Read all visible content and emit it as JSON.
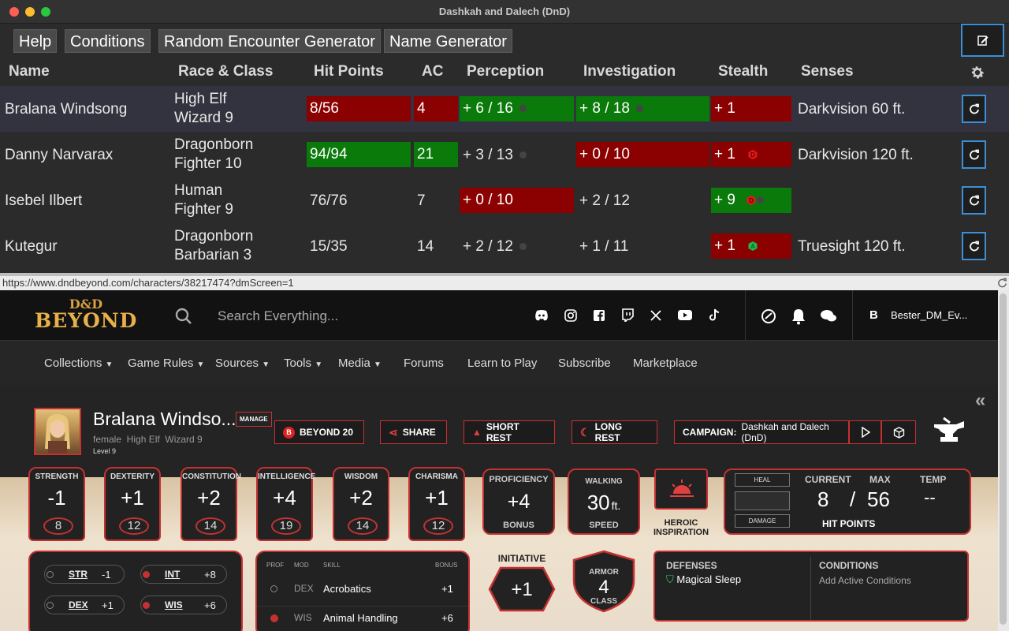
{
  "window": {
    "title": "Dashkah and Dalech (DnD)"
  },
  "toolbar": {
    "buttons": [
      "Help",
      "Conditions",
      "Random Encounter Generator",
      "Name Generator"
    ]
  },
  "table": {
    "headers": [
      "Name",
      "Race & Class",
      "Hit Points",
      "AC",
      "Perception",
      "Investigation",
      "Stealth",
      "Senses"
    ],
    "rows": [
      {
        "name": "Bralana Windsong",
        "race": "High Elf",
        "cls": "Wizard 9",
        "hp": "8/56",
        "ac": "4",
        "perception": "+ 6 / 16",
        "investigation": "+ 8 / 18",
        "stealth": "+ 1",
        "senses": "Darkvision 60 ft."
      },
      {
        "name": "Danny Narvarax",
        "race": "Dragonborn",
        "cls": "Fighter 10",
        "hp": "94/94",
        "ac": "21",
        "perception": "+ 3 / 13",
        "investigation": "+ 0 / 10",
        "stealth": "+ 1",
        "senses": "Darkvision 120 ft."
      },
      {
        "name": "Isebel Ilbert",
        "race": "Human",
        "cls": "Fighter 9",
        "hp": "76/76",
        "ac": "7",
        "perception": "+ 0 / 10",
        "investigation": "+ 2 / 12",
        "stealth": "+ 9",
        "senses": ""
      },
      {
        "name": "Kutegur",
        "race": "Dragonborn",
        "cls": "Barbarian 3",
        "hp": "15/35",
        "ac": "14",
        "perception": "+ 2 / 12",
        "investigation": "+ 1 / 11",
        "stealth": "+ 1",
        "senses": "Truesight 120 ft."
      }
    ]
  },
  "url": "https://www.dndbeyond.com/characters/38217474?dmScreen=1",
  "ddb": {
    "logo_top": "D&D",
    "logo_bottom": "BEYOND",
    "search_placeholder": "Search Everything...",
    "user": "Bester_DM_Ev...",
    "user_initial": "B",
    "nav_items": [
      "Collections",
      "Game Rules",
      "Sources",
      "Tools",
      "Media",
      "Forums",
      "Learn to Play",
      "Subscribe",
      "Marketplace"
    ],
    "character": {
      "name": "Bralana Windso...",
      "manage": "MANAGE",
      "meta": "female  High Elf  Wizard 9",
      "level": "Level 9"
    },
    "pills": {
      "beyond20": "BEYOND 20",
      "share": "SHARE",
      "short_rest": "SHORT REST",
      "long_rest": "LONG REST",
      "campaign_label": "CAMPAIGN:",
      "campaign_name": "Dashkah and Dalech (DnD)"
    },
    "abilities": [
      {
        "label": "STRENGTH",
        "mod": "-1",
        "score": "8"
      },
      {
        "label": "DEXTERITY",
        "mod": "+1",
        "score": "12"
      },
      {
        "label": "CONSTITUTION",
        "mod": "+2",
        "score": "14"
      },
      {
        "label": "INTELLIGENCE",
        "mod": "+4",
        "score": "19"
      },
      {
        "label": "WISDOM",
        "mod": "+2",
        "score": "14"
      },
      {
        "label": "CHARISMA",
        "mod": "+1",
        "score": "12"
      }
    ],
    "proficiency": {
      "top": "PROFICIENCY",
      "value": "+4",
      "bottom": "BONUS"
    },
    "speed": {
      "top": "WALKING",
      "value": "30",
      "unit": "ft.",
      "bottom": "SPEED"
    },
    "heroic": {
      "line1": "HEROIC",
      "line2": "INSPIRATION"
    },
    "hp": {
      "heal": "HEAL",
      "damage": "DAMAGE",
      "current_label": "CURRENT",
      "max_label": "MAX",
      "temp_label": "TEMP",
      "current": "8",
      "slash": "/",
      "max": "56",
      "temp": "--",
      "caption": "HIT POINTS"
    },
    "saves": [
      {
        "abbr": "STR",
        "val": "-1"
      },
      {
        "abbr": "INT",
        "val": "+8"
      },
      {
        "abbr": "DEX",
        "val": "+1"
      },
      {
        "abbr": "WIS",
        "val": "+6"
      }
    ],
    "skills": {
      "headers": [
        "PROF",
        "MOD",
        "SKILL",
        "BONUS"
      ],
      "rows": [
        {
          "mod": "DEX",
          "skill": "Acrobatics",
          "bonus": "+1"
        },
        {
          "mod": "WIS",
          "skill": "Animal Handling",
          "bonus": "+6"
        }
      ]
    },
    "initiative": {
      "label": "INITIATIVE",
      "value": "+1"
    },
    "armor": {
      "top": "ARMOR",
      "value": "4",
      "bottom": "CLASS"
    },
    "defenses": {
      "label": "DEFENSES",
      "item": "Magical Sleep"
    },
    "conditions": {
      "label": "CONDITIONS",
      "add": "Add Active Conditions"
    }
  },
  "colors": {
    "red": "#8b0000",
    "green": "#0a7a0a",
    "accent": "#c53131",
    "focus": "#3a8fd8"
  }
}
